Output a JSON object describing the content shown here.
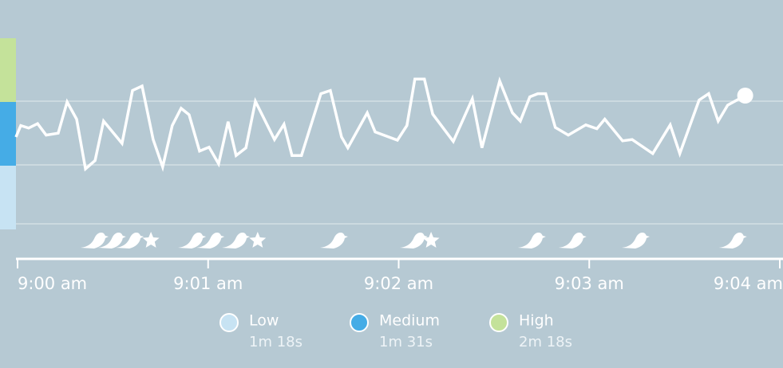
{
  "chart_data": {
    "type": "line",
    "xlim": [
      -0.5,
      240
    ],
    "ylim": [
      0,
      3
    ],
    "xticks": [
      {
        "value": 0,
        "label": "9:00 am"
      },
      {
        "value": 60,
        "label": "9:01 am"
      },
      {
        "value": 120,
        "label": "9:02 am"
      },
      {
        "value": 180,
        "label": "9:03 am"
      },
      {
        "value": 240,
        "label": "9:04 am"
      }
    ],
    "zones": [
      {
        "name": "Low",
        "duration": "1m 18s",
        "color": "#c7e3f3",
        "range": [
          0,
          1
        ]
      },
      {
        "name": "Medium",
        "duration": "1m 31s",
        "color": "#45ace6",
        "range": [
          1,
          2
        ]
      },
      {
        "name": "High",
        "duration": "2m 18s",
        "color": "#c4e29a",
        "range": [
          2,
          3
        ]
      }
    ],
    "series": [
      {
        "color": "#ffffff",
        "x": [
          -0.5,
          1.0,
          3.5,
          6.3,
          9.0,
          12.8,
          15.6,
          18.6,
          21.4,
          24.4,
          27.1,
          32.9,
          36.2,
          39.2,
          42.7,
          45.7,
          48.7,
          51.5,
          54.0,
          57.3,
          60.3,
          63.3,
          66.3,
          68.8,
          71.9,
          74.9,
          80.9,
          83.9,
          86.4,
          89.4,
          95.5,
          98.5,
          102.0,
          104.0,
          110.1,
          112.6,
          119.6,
          122.6,
          125.1,
          128.1,
          130.7,
          137.2,
          143.2,
          146.2,
          151.8,
          155.8,
          158.3,
          161.3,
          163.8,
          166.3,
          169.3,
          173.4,
          178.9,
          182.4,
          184.9,
          190.5,
          193.5,
          200.0,
          205.5,
          208.5,
          214.6,
          217.6,
          220.6,
          223.6,
          229.1
        ],
        "values": [
          1.45,
          1.63,
          1.59,
          1.66,
          1.48,
          1.51,
          2.0,
          1.73,
          0.95,
          1.08,
          1.7,
          1.35,
          2.18,
          2.25,
          1.41,
          0.98,
          1.63,
          1.9,
          1.8,
          1.23,
          1.29,
          1.03,
          1.69,
          1.16,
          1.28,
          2.01,
          1.41,
          1.65,
          1.16,
          1.16,
          2.13,
          2.18,
          1.45,
          1.28,
          1.83,
          1.53,
          1.4,
          1.63,
          2.36,
          2.36,
          1.81,
          1.38,
          2.05,
          1.28,
          2.33,
          1.83,
          1.7,
          2.08,
          2.13,
          2.13,
          1.6,
          1.48,
          1.64,
          1.58,
          1.73,
          1.39,
          1.41,
          1.19,
          1.64,
          1.19,
          2.03,
          2.13,
          1.7,
          1.95,
          2.1
        ]
      }
    ],
    "birds": [
      24.1,
      29.6,
      35.2,
      54.8,
      60.6,
      68.6,
      99.5,
      124.6,
      161.8,
      174.6,
      194.5,
      225.1
    ],
    "stars": [
      42.0,
      75.6,
      130.2
    ]
  }
}
